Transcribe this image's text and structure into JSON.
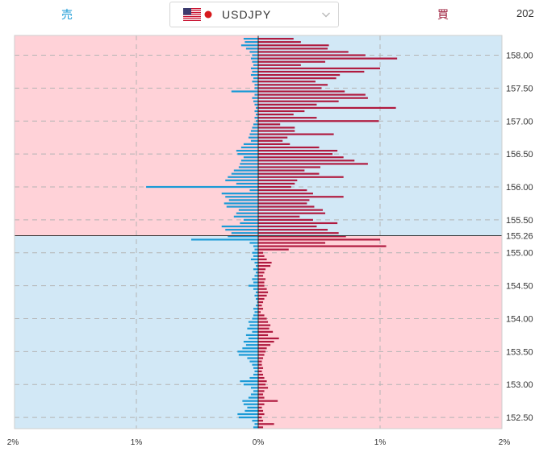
{
  "header": {
    "sell_label": "売",
    "buy_label": "買",
    "pair": "USDJPY",
    "year_fragment": "202",
    "colors": {
      "sell": "#1a9ad6",
      "buy": "#9b1b3a"
    }
  },
  "chart_data": {
    "type": "bar",
    "orientation": "horizontal",
    "title": "",
    "current_price": 155.26,
    "ylim": [
      152.33,
      158.3
    ],
    "xlim": [
      -2,
      2
    ],
    "x_ticks": [
      "2%",
      "1%",
      "0%",
      "1%",
      "2%"
    ],
    "y_ticks": [
      "158.00",
      "157.50",
      "157.00",
      "156.50",
      "156.00",
      "155.50",
      "155.26",
      "155.00",
      "154.50",
      "154.00",
      "153.50",
      "153.00",
      "152.50"
    ],
    "legend": "none",
    "grid": true,
    "colors": {
      "sell_bar": "#1a9ad6",
      "buy_bar": "#b01a3f",
      "bg_pink": "#ffd2d8",
      "bg_blue": "#d2e8f6",
      "grid": "#b4b4b4",
      "price_line": "#333333"
    },
    "series": [
      {
        "name": "売",
        "prices": [
          158.25,
          158.2,
          158.15,
          158.1,
          158.05,
          158.0,
          157.95,
          157.9,
          157.85,
          157.8,
          157.75,
          157.7,
          157.65,
          157.6,
          157.55,
          157.5,
          157.45,
          157.4,
          157.35,
          157.3,
          157.25,
          157.2,
          157.15,
          157.1,
          157.05,
          157.0,
          156.95,
          156.9,
          156.85,
          156.8,
          156.75,
          156.7,
          156.65,
          156.6,
          156.55,
          156.5,
          156.45,
          156.4,
          156.35,
          156.3,
          156.25,
          156.2,
          156.15,
          156.1,
          156.05,
          156.0,
          155.95,
          155.9,
          155.85,
          155.8,
          155.75,
          155.7,
          155.65,
          155.6,
          155.55,
          155.5,
          155.45,
          155.4,
          155.35,
          155.3,
          155.25,
          155.2,
          155.15,
          155.1,
          155.05,
          155.0,
          154.95,
          154.9,
          154.85,
          154.8,
          154.75,
          154.7,
          154.65,
          154.6,
          154.55,
          154.5,
          154.45,
          154.4,
          154.35,
          154.3,
          154.25,
          154.2,
          154.15,
          154.1,
          154.05,
          154.0,
          153.95,
          153.9,
          153.85,
          153.8,
          153.75,
          153.7,
          153.65,
          153.6,
          153.55,
          153.5,
          153.45,
          153.4,
          153.35,
          153.3,
          153.25,
          153.2,
          153.15,
          153.1,
          153.05,
          153.0,
          152.95,
          152.9,
          152.85,
          152.8,
          152.75,
          152.7,
          152.65,
          152.6,
          152.55,
          152.5,
          152.45,
          152.4,
          152.35
        ],
        "values": [
          0.12,
          0.11,
          0.14,
          0.1,
          0.07,
          0.05,
          0.06,
          0.05,
          0.04,
          0.06,
          0.05,
          0.06,
          0.04,
          0.05,
          0.03,
          0.03,
          0.22,
          0.03,
          0.05,
          0.04,
          0.03,
          0.02,
          0.03,
          0.02,
          0.03,
          0.02,
          0.04,
          0.05,
          0.06,
          0.07,
          0.08,
          0.06,
          0.12,
          0.14,
          0.18,
          0.17,
          0.12,
          0.14,
          0.15,
          0.16,
          0.2,
          0.22,
          0.25,
          0.27,
          0.18,
          0.92,
          0.07,
          0.3,
          0.27,
          0.24,
          0.28,
          0.26,
          0.16,
          0.18,
          0.2,
          0.12,
          0.15,
          0.3,
          0.27,
          0.22,
          0.25,
          0.55,
          0.07,
          0.04,
          0.03,
          0.05,
          0.04,
          0.06,
          0.03,
          0.02,
          0.04,
          0.02,
          0.03,
          0.05,
          0.04,
          0.08,
          0.04,
          0.02,
          0.03,
          0.02,
          0.01,
          0.02,
          0.04,
          0.03,
          0.04,
          0.05,
          0.08,
          0.07,
          0.09,
          0.05,
          0.1,
          0.08,
          0.12,
          0.1,
          0.13,
          0.17,
          0.16,
          0.09,
          0.07,
          0.05,
          0.04,
          0.03,
          0.04,
          0.07,
          0.15,
          0.12,
          0.06,
          0.04,
          0.06,
          0.08,
          0.13,
          0.12,
          0.09,
          0.11,
          0.17,
          0.16,
          0.05,
          0.03,
          0.04
        ]
      },
      {
        "name": "買",
        "prices": [
          158.25,
          158.2,
          158.15,
          158.1,
          158.05,
          158.0,
          157.95,
          157.9,
          157.85,
          157.8,
          157.75,
          157.7,
          157.65,
          157.6,
          157.55,
          157.5,
          157.45,
          157.4,
          157.35,
          157.3,
          157.25,
          157.2,
          157.15,
          157.1,
          157.05,
          157.0,
          156.95,
          156.9,
          156.85,
          156.8,
          156.75,
          156.7,
          156.65,
          156.6,
          156.55,
          156.5,
          156.45,
          156.4,
          156.35,
          156.3,
          156.25,
          156.2,
          156.15,
          156.1,
          156.05,
          156.0,
          155.95,
          155.9,
          155.85,
          155.8,
          155.75,
          155.7,
          155.65,
          155.6,
          155.55,
          155.5,
          155.45,
          155.4,
          155.35,
          155.3,
          155.25,
          155.2,
          155.15,
          155.1,
          155.05,
          155.0,
          154.95,
          154.9,
          154.85,
          154.8,
          154.75,
          154.7,
          154.65,
          154.6,
          154.55,
          154.5,
          154.45,
          154.4,
          154.35,
          154.3,
          154.25,
          154.2,
          154.15,
          154.1,
          154.05,
          154.0,
          153.95,
          153.9,
          153.85,
          153.8,
          153.75,
          153.7,
          153.65,
          153.6,
          153.55,
          153.5,
          153.45,
          153.4,
          153.35,
          153.3,
          153.25,
          153.2,
          153.15,
          153.1,
          153.05,
          153.0,
          152.95,
          152.9,
          152.85,
          152.8,
          152.75,
          152.7,
          152.65,
          152.6,
          152.55,
          152.5,
          152.45,
          152.4,
          152.35
        ],
        "values": [
          0.29,
          0.35,
          0.58,
          0.57,
          0.74,
          0.88,
          1.14,
          0.55,
          0.35,
          1.0,
          0.87,
          0.67,
          0.64,
          0.47,
          0.57,
          0.52,
          0.71,
          0.88,
          0.9,
          0.66,
          0.48,
          1.13,
          0.38,
          0.29,
          0.48,
          0.99,
          0.18,
          0.3,
          0.3,
          0.62,
          0.24,
          0.2,
          0.26,
          0.5,
          0.65,
          0.61,
          0.7,
          0.79,
          0.9,
          0.51,
          0.38,
          0.5,
          0.7,
          0.32,
          0.3,
          0.27,
          0.4,
          0.45,
          0.7,
          0.42,
          0.4,
          0.46,
          0.53,
          0.55,
          0.34,
          0.45,
          0.65,
          0.48,
          0.57,
          0.66,
          0.72,
          1.0,
          0.55,
          1.05,
          0.25,
          0.04,
          0.05,
          0.07,
          0.11,
          0.1,
          0.06,
          0.05,
          0.04,
          0.06,
          0.05,
          0.05,
          0.07,
          0.08,
          0.07,
          0.05,
          0.04,
          0.03,
          0.04,
          0.02,
          0.05,
          0.07,
          0.08,
          0.1,
          0.09,
          0.12,
          0.08,
          0.17,
          0.13,
          0.1,
          0.07,
          0.06,
          0.05,
          0.04,
          0.03,
          0.03,
          0.04,
          0.03,
          0.04,
          0.05,
          0.07,
          0.06,
          0.08,
          0.05,
          0.04,
          0.05,
          0.16,
          0.05,
          0.03,
          0.04,
          0.05,
          0.03,
          0.04,
          0.13,
          0.04
        ]
      }
    ]
  }
}
